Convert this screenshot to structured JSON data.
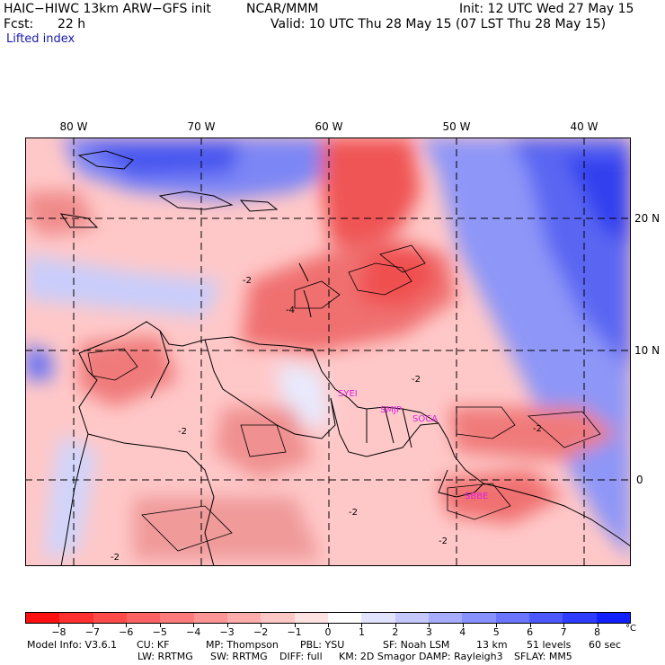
{
  "header": {
    "model_title": "HAIC−HIWC 13km ARW−GFS init",
    "org": "NCAR/MMM",
    "init_label": "Init: 12 UTC Wed 27 May 15",
    "fcst_label": "Fcst:",
    "fcst_value": "22 h",
    "valid_label": "Valid: 10 UTC Thu 28 May 15 (07 LST Thu 28 May 15)",
    "field_name": "Lifted index"
  },
  "map": {
    "lon_labels": [
      "80 W",
      "70 W",
      "60 W",
      "50 W",
      "40 W"
    ],
    "lat_labels": [
      "20 N",
      "10 N",
      "0"
    ],
    "stations": [
      "SYEI",
      "SMJP",
      "SOCA",
      "SBBE"
    ],
    "contour_labels": [
      "-2",
      "-4",
      "-2",
      "-2",
      "-2",
      "-2",
      "-2",
      "-2"
    ],
    "colors": {
      "positive_deep": "#4d5cf0",
      "negative_deep": "#f04a4a",
      "station_label": "#e020e0"
    }
  },
  "colorbar": {
    "labels": [
      "−8",
      "−7",
      "−6",
      "−5",
      "−4",
      "−3",
      "−2",
      "−1",
      "0",
      "1",
      "2",
      "3",
      "4",
      "5",
      "6",
      "7",
      "8"
    ],
    "unit": "°C",
    "colors": [
      "#ff1010",
      "#ff3030",
      "#ff4a4a",
      "#ff6262",
      "#ff7a7a",
      "#ff9494",
      "#ffacac",
      "#ffc6c6",
      "#ffe2e2",
      "#ffffff",
      "#e2e4ff",
      "#c4c8ff",
      "#a6acff",
      "#8890ff",
      "#6a74ff",
      "#4c58ff",
      "#2e3cff",
      "#1020ff"
    ]
  },
  "footer": {
    "line1": [
      "Model Info: V3.6.1",
      "CU: KF",
      "MP: Thompson",
      "PBL: YSU",
      "SF: Noah LSM",
      "13 km",
      "51 levels",
      "60 sec"
    ],
    "line2": [
      "LW: RRTMG",
      "SW: RRTMG",
      "DIFF: full",
      "KM: 2D Smagor",
      "DAMP: Rayleigh3",
      "SFLAY: MM5"
    ]
  }
}
